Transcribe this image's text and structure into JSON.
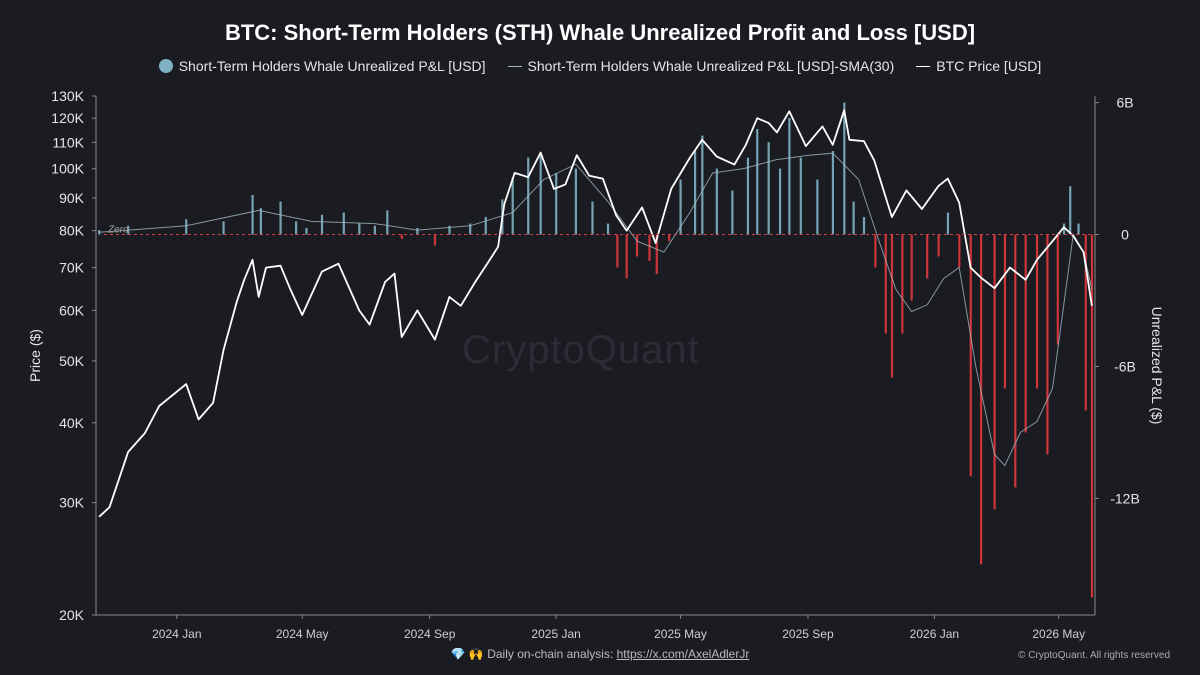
{
  "colors": {
    "background": "#1b1b22",
    "profit": "#7fb2c4",
    "loss": "#e0383c",
    "sma": "#9fb6be",
    "price": "#ffffff"
  },
  "footer": {
    "emoji": "💎 🙌",
    "text": "Daily on-chain analysis:",
    "link": "https://x.com/AxelAdlerJr",
    "copyright": "© CryptoQuant. All rights reserved"
  },
  "watermark": "CryptoQuant",
  "chart_data": {
    "type": "bar",
    "title": "BTC: Short-Term Holders (STH) Whale Unrealized Profit and Loss [USD]",
    "legend": [
      {
        "label": "Short-Term Holders Whale Unrealized P&L [USD]",
        "marker": "dot",
        "color": "#7fb2c4"
      },
      {
        "label": "Short-Term Holders Whale Unrealized P&L [USD]-SMA(30)",
        "marker": "line",
        "color": "#9fb6be"
      },
      {
        "label": "BTC Price [USD]",
        "marker": "line",
        "color": "#ffffff"
      }
    ],
    "legend_placement": "top-center",
    "grid": false,
    "ylabel_left": "Price ($)",
    "ylabel_right": "Unrealized P&L ($)",
    "y_left_scale": "log",
    "y_left_range": [
      20000,
      130000
    ],
    "y_left_ticks": [
      {
        "v": 20000,
        "label": "20K"
      },
      {
        "v": 30000,
        "label": "30K"
      },
      {
        "v": 40000,
        "label": "40K"
      },
      {
        "v": 50000,
        "label": "50K"
      },
      {
        "v": 60000,
        "label": "60K"
      },
      {
        "v": 70000,
        "label": "70K"
      },
      {
        "v": 80000,
        "label": "80K"
      },
      {
        "v": 90000,
        "label": "90K"
      },
      {
        "v": 100000,
        "label": "100K"
      },
      {
        "v": 110000,
        "label": "110K"
      },
      {
        "v": 120000,
        "label": "120K"
      },
      {
        "v": 130000,
        "label": "130K"
      }
    ],
    "y_right_range": [
      -17300000000,
      6300000000
    ],
    "y_right_ticks": [
      {
        "v": 6000000000,
        "label": "6B"
      },
      {
        "v": 0,
        "label": "0"
      },
      {
        "v": -6000000000,
        "label": "-6B"
      },
      {
        "v": -12000000000,
        "label": "-12B"
      }
    ],
    "zero_label": "Zero",
    "x_range": [
      "2023-10-15",
      "2026-06-05"
    ],
    "x_ticks": [
      {
        "v": "2024-01-01",
        "label": "2024 Jan"
      },
      {
        "v": "2024-05-01",
        "label": "2024 May"
      },
      {
        "v": "2024-09-01",
        "label": "2024 Sep"
      },
      {
        "v": "2025-01-01",
        "label": "2025 Jan"
      },
      {
        "v": "2025-05-01",
        "label": "2025 May"
      },
      {
        "v": "2025-09-01",
        "label": "2025 Sep"
      },
      {
        "v": "2026-01-01",
        "label": "2026 Jan"
      },
      {
        "v": "2026-05-01",
        "label": "2026 May"
      }
    ],
    "btc_price": {
      "x": [
        "2023-10-18",
        "2023-10-28",
        "2023-11-15",
        "2023-12-01",
        "2023-12-15",
        "2024-01-10",
        "2024-01-22",
        "2024-02-05",
        "2024-02-15",
        "2024-02-28",
        "2024-03-06",
        "2024-03-14",
        "2024-03-20",
        "2024-03-27",
        "2024-04-10",
        "2024-04-20",
        "2024-05-01",
        "2024-05-20",
        "2024-06-05",
        "2024-06-25",
        "2024-07-05",
        "2024-07-20",
        "2024-07-29",
        "2024-08-05",
        "2024-08-20",
        "2024-09-06",
        "2024-09-20",
        "2024-10-01",
        "2024-10-15",
        "2024-10-29",
        "2024-11-06",
        "2024-11-12",
        "2024-11-22",
        "2024-12-05",
        "2024-12-17",
        "2024-12-30",
        "2025-01-10",
        "2025-01-21",
        "2025-02-02",
        "2025-02-15",
        "2025-02-28",
        "2025-03-10",
        "2025-03-25",
        "2025-04-07",
        "2025-04-22",
        "2025-05-10",
        "2025-05-22",
        "2025-06-05",
        "2025-06-22",
        "2025-07-03",
        "2025-07-14",
        "2025-07-25",
        "2025-08-02",
        "2025-08-14",
        "2025-08-30",
        "2025-09-15",
        "2025-09-25",
        "2025-10-06",
        "2025-10-11",
        "2025-10-25",
        "2025-11-04",
        "2025-11-21",
        "2025-12-05",
        "2025-12-20",
        "2026-01-05",
        "2026-01-14",
        "2026-01-25",
        "2026-02-05",
        "2026-02-15",
        "2026-02-28",
        "2026-03-15",
        "2026-03-30",
        "2026-04-10",
        "2026-04-25",
        "2026-05-06",
        "2026-05-15",
        "2026-05-25",
        "2026-06-02"
      ],
      "y": [
        28500,
        29500,
        36000,
        38500,
        42500,
        46000,
        40500,
        43000,
        52000,
        62000,
        67000,
        72000,
        63000,
        70000,
        70500,
        64500,
        59000,
        69000,
        71000,
        60000,
        57000,
        66500,
        68500,
        54500,
        60000,
        54000,
        63000,
        61000,
        66500,
        72000,
        75500,
        88000,
        98500,
        97000,
        106000,
        93000,
        94500,
        105000,
        97500,
        96500,
        84500,
        80000,
        87000,
        76500,
        93000,
        104000,
        111000,
        104500,
        101500,
        109000,
        120000,
        118000,
        114000,
        123000,
        108500,
        116500,
        109000,
        123500,
        111000,
        110500,
        103000,
        84000,
        92500,
        86500,
        94000,
        96500,
        88500,
        70000,
        67500,
        65000,
        70000,
        67000,
        72000,
        77000,
        81000,
        78500,
        74000,
        61000
      ]
    },
    "pnl": {
      "x": [
        "2023-10-18",
        "2023-11-15",
        "2024-01-10",
        "2024-02-15",
        "2024-03-14",
        "2024-03-22",
        "2024-04-10",
        "2024-04-25",
        "2024-05-05",
        "2024-05-20",
        "2024-06-10",
        "2024-06-25",
        "2024-07-10",
        "2024-07-22",
        "2024-08-05",
        "2024-08-20",
        "2024-09-06",
        "2024-09-20",
        "2024-10-10",
        "2024-10-25",
        "2024-11-10",
        "2024-11-20",
        "2024-12-05",
        "2024-12-17",
        "2025-01-01",
        "2025-01-20",
        "2025-02-05",
        "2025-02-20",
        "2025-03-01",
        "2025-03-10",
        "2025-03-20",
        "2025-04-01",
        "2025-04-08",
        "2025-04-20",
        "2025-05-01",
        "2025-05-15",
        "2025-05-22",
        "2025-06-05",
        "2025-06-20",
        "2025-07-05",
        "2025-07-14",
        "2025-07-25",
        "2025-08-05",
        "2025-08-14",
        "2025-08-25",
        "2025-09-10",
        "2025-09-25",
        "2025-10-06",
        "2025-10-15",
        "2025-10-25",
        "2025-11-05",
        "2025-11-15",
        "2025-11-21",
        "2025-12-01",
        "2025-12-10",
        "2025-12-25",
        "2026-01-05",
        "2026-01-14",
        "2026-01-25",
        "2026-02-05",
        "2026-02-15",
        "2026-02-28",
        "2026-03-10",
        "2026-03-20",
        "2026-03-30",
        "2026-04-10",
        "2026-04-20",
        "2026-04-30",
        "2026-05-06",
        "2026-05-12",
        "2026-05-20",
        "2026-05-27",
        "2026-06-02"
      ],
      "y": [
        200000000.0,
        400000000.0,
        700000000.0,
        600000000.0,
        1800000000.0,
        1200000000.0,
        1500000000.0,
        600000000.0,
        300000000.0,
        900000000.0,
        1000000000.0,
        500000000.0,
        400000000.0,
        1100000000.0,
        -200000000.0,
        300000000.0,
        -500000000.0,
        400000000.0,
        500000000.0,
        800000000.0,
        1600000000.0,
        2600000000.0,
        3500000000.0,
        3600000000.0,
        2800000000.0,
        3000000000.0,
        1500000000.0,
        500000000.0,
        -1500000000.0,
        -2000000000.0,
        -1000000000.0,
        -1200000000.0,
        -1800000000.0,
        -300000000.0,
        2500000000.0,
        3800000000.0,
        4500000000.0,
        3000000000.0,
        2000000000.0,
        3500000000.0,
        4800000000.0,
        4200000000.0,
        3000000000.0,
        5300000000.0,
        3500000000.0,
        2500000000.0,
        3800000000.0,
        6000000000.0,
        1500000000.0,
        800000000.0,
        -1500000000.0,
        -4500000000.0,
        -6500000000.0,
        -4500000000.0,
        -3000000000.0,
        -2000000000.0,
        -1000000000.0,
        1000000000.0,
        -1500000000.0,
        -11000000000.0,
        -15000000000.0,
        -12500000000.0,
        -7000000000.0,
        -11500000000.0,
        -9000000000.0,
        -7000000000.0,
        -10000000000.0,
        -5000000000.0,
        500000000.0,
        2200000000.0,
        500000000.0,
        -8000000000.0,
        -16500000000.0
      ]
    },
    "pnl_sma30": {
      "x": [
        "2023-10-18",
        "2024-01-10",
        "2024-03-20",
        "2024-05-10",
        "2024-07-10",
        "2024-08-20",
        "2024-10-10",
        "2024-11-20",
        "2024-12-20",
        "2025-01-20",
        "2025-02-20",
        "2025-03-20",
        "2025-04-15",
        "2025-05-10",
        "2025-06-01",
        "2025-07-01",
        "2025-08-01",
        "2025-09-01",
        "2025-09-25",
        "2025-10-20",
        "2025-11-10",
        "2025-11-25",
        "2025-12-10",
        "2025-12-25",
        "2026-01-10",
        "2026-01-25",
        "2026-02-10",
        "2026-02-28",
        "2026-03-10",
        "2026-03-25",
        "2026-04-10",
        "2026-04-25",
        "2026-05-05",
        "2026-05-15",
        "2026-05-25",
        "2026-06-02"
      ],
      "y": [
        100000000.0,
        400000000.0,
        1100000000.0,
        600000000.0,
        500000000.0,
        200000000.0,
        400000000.0,
        1000000000.0,
        2500000000.0,
        3200000000.0,
        1500000000.0,
        -300000000.0,
        -800000000.0,
        1000000000.0,
        2800000000.0,
        3000000000.0,
        3400000000.0,
        3600000000.0,
        3700000000.0,
        2500000000.0,
        -500000000.0,
        -2500000000.0,
        -3500000000.0,
        -3200000000.0,
        -2000000000.0,
        -1500000000.0,
        -6000000000.0,
        -10000000000.0,
        -10500000000.0,
        -9000000000.0,
        -8500000000.0,
        -7000000000.0,
        -3500000000.0,
        0.0,
        -800000000.0,
        -2500000000.0
      ]
    }
  }
}
